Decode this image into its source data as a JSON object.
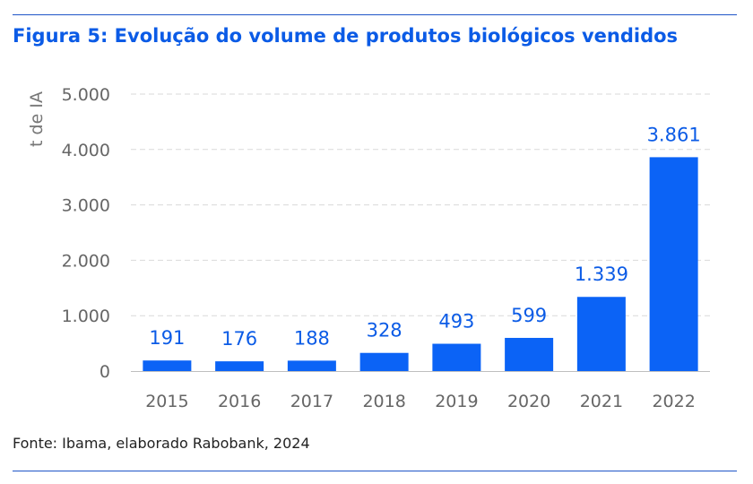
{
  "header": {
    "title": "Figura 5: Evolução do volume de produtos biológicos vendidos"
  },
  "footer": {
    "source": "Fonte: Ibama, elaborado Rabobank, 2024"
  },
  "colors": {
    "bar": "#0b63f6",
    "title": "#0b5be6",
    "rule": "#1f55c7"
  },
  "chart_data": {
    "type": "bar",
    "title": "Figura 5: Evolução do volume de produtos biológicos vendidos",
    "ylabel": "t de IA",
    "xlabel": "",
    "categories": [
      "2015",
      "2016",
      "2017",
      "2018",
      "2019",
      "2020",
      "2021",
      "2022"
    ],
    "values": [
      191,
      176,
      188,
      328,
      493,
      599,
      1339,
      3861
    ],
    "value_labels": [
      "191",
      "176",
      "188",
      "328",
      "493",
      "599",
      "1.339",
      "3.861"
    ],
    "yticks": [
      0,
      1000,
      2000,
      3000,
      4000,
      5000
    ],
    "ytick_labels": [
      "0",
      "1.000",
      "2.000",
      "3.000",
      "4.000",
      "5.000"
    ],
    "ylim": [
      0,
      5000
    ],
    "grid": true,
    "legend": "none"
  }
}
